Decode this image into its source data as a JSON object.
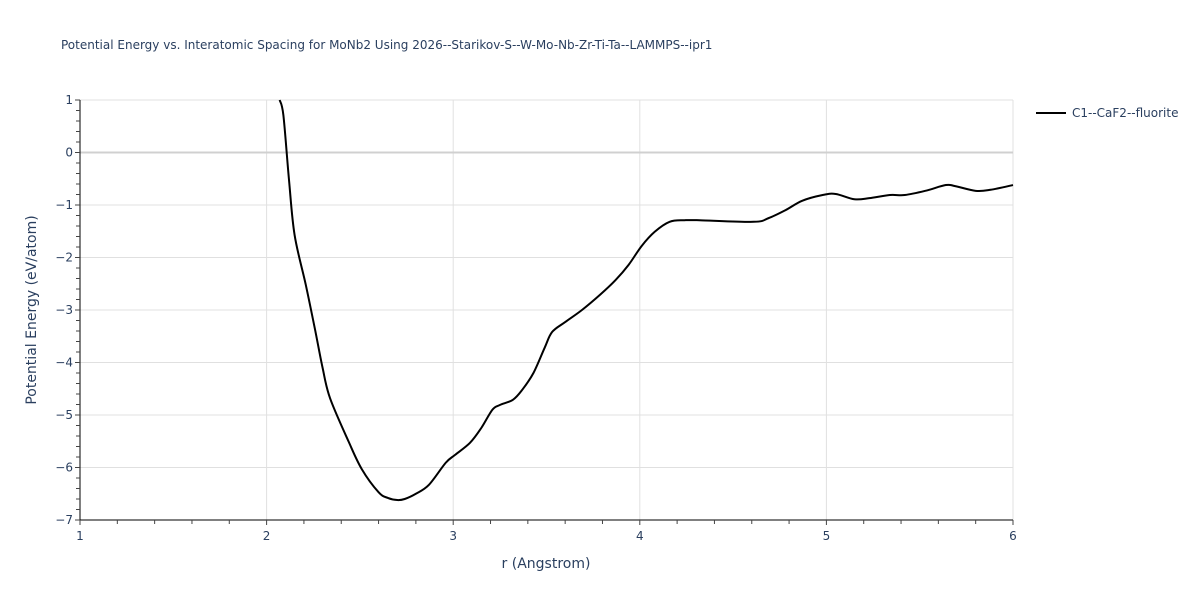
{
  "title": "Potential Energy vs. Interatomic Spacing for MoNb2 Using 2026--Starikov-S--W-Mo-Nb-Zr-Ti-Ta--LAMMPS--ipr1",
  "legend": {
    "label": "C1--CaF2--fluorite",
    "color": "#000000"
  },
  "axes": {
    "x": {
      "title": "r (Angstrom)",
      "ticks": [
        "1",
        "2",
        "3",
        "4",
        "5",
        "6"
      ]
    },
    "y": {
      "title": "Potential Energy (eV/atom)",
      "ticks": [
        "1",
        "0",
        "−1",
        "−2",
        "−3",
        "−4",
        "−5",
        "−6",
        "−7"
      ]
    }
  },
  "chart_data": {
    "type": "line",
    "title": "Potential Energy vs. Interatomic Spacing for MoNb2 Using 2026--Starikov-S--W-Mo-Nb-Zr-Ti-Ta--LAMMPS--ipr1",
    "xlabel": "r (Angstrom)",
    "ylabel": "Potential Energy (eV/atom)",
    "xlim": [
      1,
      6
    ],
    "ylim": [
      -7,
      1
    ],
    "grid": true,
    "legend_position": "right-top",
    "series": [
      {
        "name": "C1--CaF2--fluorite",
        "color": "#000000",
        "x": [
          2.07,
          2.09,
          2.12,
          2.15,
          2.21,
          2.26,
          2.3,
          2.34,
          2.44,
          2.51,
          2.6,
          2.65,
          2.7,
          2.74,
          2.8,
          2.87,
          2.96,
          3.01,
          3.09,
          3.15,
          3.21,
          3.25,
          3.32,
          3.37,
          3.43,
          3.49,
          3.53,
          3.6,
          3.69,
          3.79,
          3.87,
          3.94,
          4.01,
          4.08,
          4.16,
          4.24,
          4.32,
          4.61,
          4.69,
          4.78,
          4.87,
          4.98,
          5.05,
          5.15,
          5.23,
          5.34,
          5.42,
          5.53,
          5.64,
          5.69,
          5.8,
          5.88,
          6.0
        ],
        "y": [
          1.0,
          0.71,
          -0.52,
          -1.57,
          -2.52,
          -3.38,
          -4.1,
          -4.68,
          -5.51,
          -6.03,
          -6.47,
          -6.58,
          -6.62,
          -6.6,
          -6.5,
          -6.33,
          -5.91,
          -5.76,
          -5.53,
          -5.25,
          -4.9,
          -4.81,
          -4.71,
          -4.52,
          -4.2,
          -3.72,
          -3.42,
          -3.23,
          -3.0,
          -2.7,
          -2.43,
          -2.14,
          -1.78,
          -1.51,
          -1.32,
          -1.29,
          -1.29,
          -1.32,
          -1.25,
          -1.1,
          -0.92,
          -0.81,
          -0.79,
          -0.89,
          -0.87,
          -0.81,
          -0.81,
          -0.73,
          -0.62,
          -0.64,
          -0.73,
          -0.71,
          -0.62
        ]
      }
    ]
  }
}
